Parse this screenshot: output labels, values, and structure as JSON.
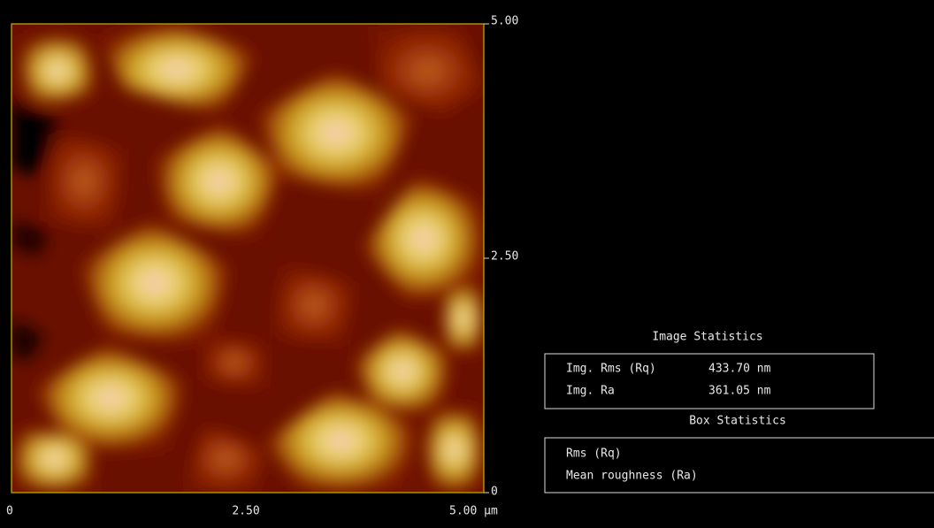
{
  "image_panel": {
    "y_tick_labels": [
      "5.00",
      "2.50",
      "0"
    ],
    "x_tick_labels": [
      "0",
      "2.50",
      "5.00 µm"
    ]
  },
  "image_statistics": {
    "title": "Image Statistics",
    "rows": [
      [
        "Img. Rms (Rq)",
        "433.70 nm"
      ],
      [
        "Img. Ra",
        "361.05 nm"
      ]
    ]
  },
  "box_statistics": {
    "title": "Box Statistics",
    "rows": [
      "Rms (Rq)",
      "Mean roughness (Ra)"
    ]
  }
}
